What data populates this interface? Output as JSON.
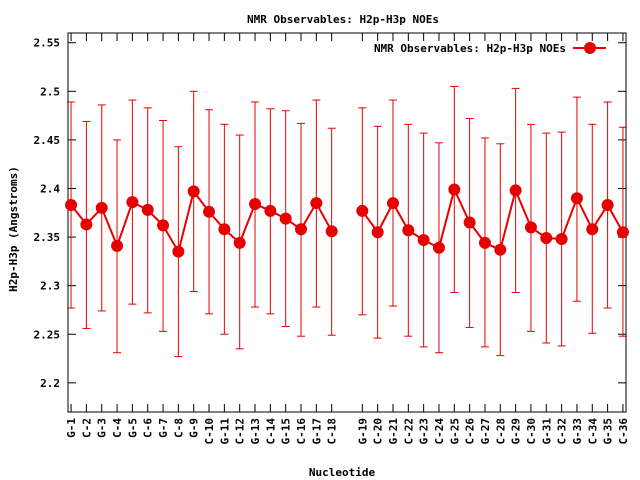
{
  "colors": {
    "series": "#e60000",
    "frame": "#000000",
    "background": "#ffffff"
  },
  "chart_data": {
    "type": "line",
    "title": "NMR Observables: H2p-H3p NOEs",
    "xlabel": "Nucleotide",
    "ylabel": "H2p-H3p (Angstroms)",
    "ylim": [
      2.17,
      2.56
    ],
    "yticks": [
      2.2,
      2.25,
      2.3,
      2.35,
      2.4,
      2.45,
      2.5,
      2.55
    ],
    "ytick_labels": [
      "2.2",
      "2.25",
      "2.3",
      "2.35",
      "2.4",
      "2.45",
      "2.5",
      "2.55"
    ],
    "x": [
      1,
      2,
      3,
      4,
      5,
      6,
      7,
      8,
      9,
      10,
      11,
      12,
      13,
      14,
      15,
      16,
      17,
      18,
      20,
      21,
      22,
      23,
      24,
      25,
      26,
      27,
      28,
      29,
      30,
      31,
      32,
      33,
      34,
      35,
      36,
      37
    ],
    "xlim": [
      0.8,
      37.2
    ],
    "categories": [
      "G-1",
      "C-2",
      "G-3",
      "C-4",
      "G-5",
      "C-6",
      "G-7",
      "C-8",
      "G-9",
      "C-10",
      "G-11",
      "C-12",
      "G-13",
      "C-14",
      "G-15",
      "C-16",
      "G-17",
      "C-18",
      "G-19",
      "C-20",
      "G-21",
      "C-22",
      "G-23",
      "C-24",
      "G-25",
      "C-26",
      "G-27",
      "C-28",
      "G-29",
      "C-30",
      "G-31",
      "C-32",
      "G-33",
      "C-34",
      "G-35",
      "C-36"
    ],
    "legend_position": "top-right",
    "grid": false,
    "series": [
      {
        "name": "NMR Observables: H2p-H3p NOEs",
        "values": [
          2.383,
          2.363,
          2.38,
          2.341,
          2.386,
          2.378,
          2.362,
          2.335,
          2.397,
          2.376,
          2.358,
          2.344,
          2.384,
          2.377,
          2.369,
          2.358,
          2.385,
          2.356,
          2.377,
          2.355,
          2.385,
          2.357,
          2.347,
          2.339,
          2.399,
          2.365,
          2.344,
          2.337,
          2.398,
          2.36,
          2.349,
          2.348,
          2.39,
          2.358,
          2.383,
          2.355
        ],
        "err_high": [
          2.489,
          2.469,
          2.486,
          2.45,
          2.491,
          2.483,
          2.47,
          2.443,
          2.5,
          2.481,
          2.466,
          2.455,
          2.489,
          2.482,
          2.48,
          2.467,
          2.491,
          2.462,
          2.483,
          2.464,
          2.491,
          2.466,
          2.457,
          2.447,
          2.505,
          2.472,
          2.452,
          2.446,
          2.503,
          2.466,
          2.457,
          2.458,
          2.494,
          2.466,
          2.489,
          2.463
        ],
        "err_low": [
          2.277,
          2.256,
          2.274,
          2.231,
          2.281,
          2.272,
          2.253,
          2.227,
          2.294,
          2.271,
          2.25,
          2.235,
          2.278,
          2.271,
          2.258,
          2.248,
          2.278,
          2.249,
          2.27,
          2.246,
          2.279,
          2.248,
          2.237,
          2.231,
          2.293,
          2.257,
          2.237,
          2.228,
          2.293,
          2.253,
          2.241,
          2.238,
          2.284,
          2.251,
          2.277,
          2.248
        ]
      }
    ]
  }
}
